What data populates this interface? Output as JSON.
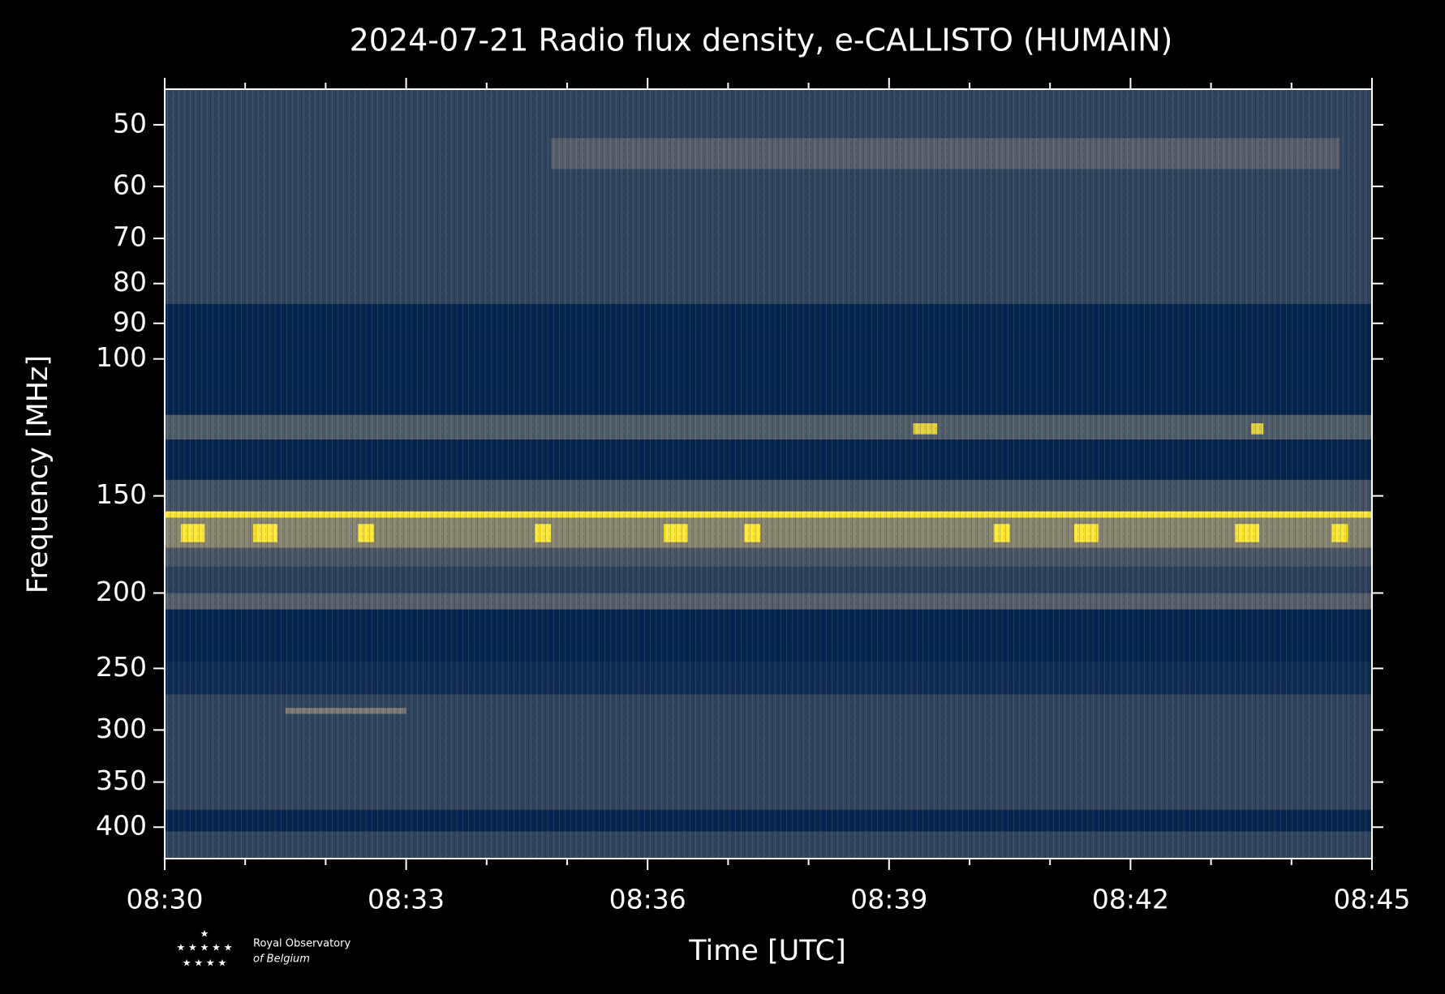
{
  "chart_data": {
    "type": "spectrogram",
    "title": "2024-07-21 Radio flux density, e-CALLISTO (HUMAIN)",
    "x_label": "Time [UTC]",
    "y_label": "Frequency [MHz]",
    "xlim": [
      510,
      525
    ],
    "xticks": [
      {
        "value": 510,
        "label": "08:30"
      },
      {
        "value": 513,
        "label": "08:33"
      },
      {
        "value": 516,
        "label": "08:36"
      },
      {
        "value": 519,
        "label": "08:39"
      },
      {
        "value": 522,
        "label": "08:42"
      },
      {
        "value": 525,
        "label": "08:45"
      }
    ],
    "xminor": [
      511,
      512,
      514,
      515,
      517,
      518,
      520,
      521,
      523,
      524
    ],
    "ylim": [
      45,
      439
    ],
    "y_log": true,
    "y_inverted": true,
    "yticks": [
      50,
      60,
      70,
      80,
      90,
      100,
      150,
      200,
      250,
      300,
      350,
      400
    ],
    "colormap": [
      "#00224e",
      "#7c7b78",
      "#fee838"
    ],
    "bands": [
      {
        "from": 45,
        "to": 85,
        "level": 0.2
      },
      {
        "from": 85,
        "to": 118,
        "level": 0.02
      },
      {
        "from": 118,
        "to": 127,
        "level": 0.33
      },
      {
        "from": 127,
        "to": 143,
        "level": 0.02
      },
      {
        "from": 143,
        "to": 157,
        "level": 0.28
      },
      {
        "from": 157,
        "to": 160,
        "level": 1
      },
      {
        "from": 160,
        "to": 175,
        "level": 0.55
      },
      {
        "from": 175,
        "to": 185,
        "level": 0.3
      },
      {
        "from": 185,
        "to": 200,
        "level": 0.18
      },
      {
        "from": 200,
        "to": 210,
        "level": 0.35
      },
      {
        "from": 210,
        "to": 245,
        "level": 0.02
      },
      {
        "from": 245,
        "to": 270,
        "level": 0.06
      },
      {
        "from": 270,
        "to": 380,
        "level": 0.2
      },
      {
        "from": 380,
        "to": 405,
        "level": 0.03
      },
      {
        "from": 405,
        "to": 439,
        "level": 0.2
      }
    ],
    "patches": [
      {
        "x": [
          514.8,
          524.6
        ],
        "y": [
          52,
          57
        ],
        "level": 0.35
      },
      {
        "x": [
          511.5,
          513.0
        ],
        "y": [
          281,
          286
        ],
        "level": 0.5
      },
      {
        "x": [
          510.2,
          510.5
        ],
        "y": [
          163,
          172
        ],
        "level": 1
      },
      {
        "x": [
          511.1,
          511.4
        ],
        "y": [
          163,
          172
        ],
        "level": 1
      },
      {
        "x": [
          512.4,
          512.6
        ],
        "y": [
          163,
          172
        ],
        "level": 1
      },
      {
        "x": [
          514.6,
          514.8
        ],
        "y": [
          163,
          172
        ],
        "level": 1
      },
      {
        "x": [
          516.2,
          516.5
        ],
        "y": [
          163,
          172
        ],
        "level": 1
      },
      {
        "x": [
          517.2,
          517.4
        ],
        "y": [
          163,
          172
        ],
        "level": 1
      },
      {
        "x": [
          520.3,
          520.5
        ],
        "y": [
          163,
          172
        ],
        "level": 1
      },
      {
        "x": [
          521.3,
          521.6
        ],
        "y": [
          163,
          172
        ],
        "level": 1
      },
      {
        "x": [
          523.3,
          523.6
        ],
        "y": [
          163,
          172
        ],
        "level": 1
      },
      {
        "x": [
          524.5,
          524.7
        ],
        "y": [
          163,
          172
        ],
        "level": 1
      },
      {
        "x": [
          519.3,
          519.6
        ],
        "y": [
          121,
          125
        ],
        "level": 0.9
      },
      {
        "x": [
          523.5,
          523.65
        ],
        "y": [
          121,
          125
        ],
        "level": 0.9
      }
    ],
    "logo": [
      "Royal Observatory",
      "of Belgium"
    ]
  }
}
